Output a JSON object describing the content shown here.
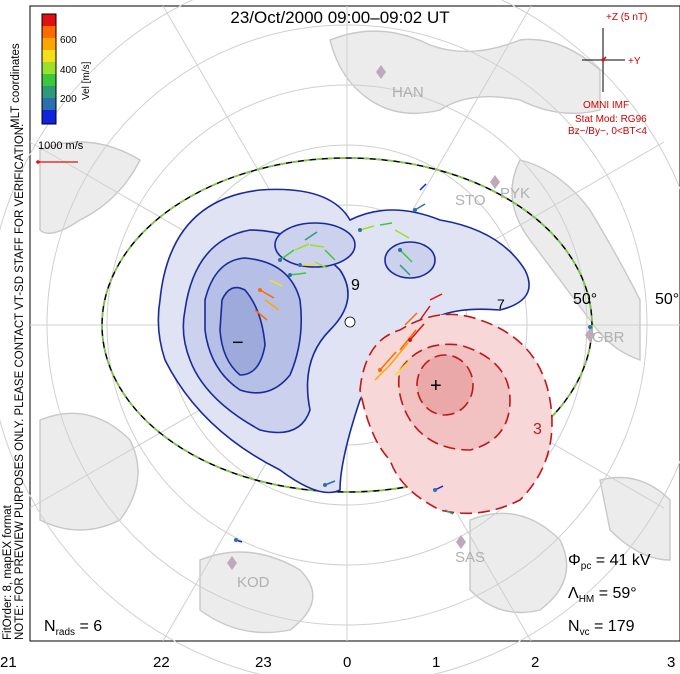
{
  "title": "23/Oct/2000 09:00–09:02 UT",
  "coordinate_system": "MLT coordinates",
  "colorbar": {
    "label": "Vel [m/s]",
    "ticks": [
      "600",
      "400",
      "200"
    ],
    "colors": [
      "#e01010",
      "#ff6a00",
      "#ffa500",
      "#f2e11a",
      "#9be02a",
      "#3cc83c",
      "#2e9a7a",
      "#2a6fb0",
      "#1024e0"
    ]
  },
  "velocity_reference": "1000 m/s",
  "imf": {
    "clock_label_z": "+Z (5 nT)",
    "clock_label_y": "+Y",
    "source": "OMNI IMF",
    "stat_model": "Stat Mod: RG96",
    "condition": "Bz−/By−, 0<BT<4"
  },
  "notice": "NOTE: FOR PREVIEW PURPOSES ONLY. PLEASE CONTACT VT-SD STAFF FOR VERIFICATION.",
  "fit_info": "FitOrder: 8, mapEX format",
  "stations": [
    "HAN",
    "PYK",
    "STO",
    "GBR",
    "SAS",
    "KOD"
  ],
  "latitude_labels": [
    "50°",
    "50°"
  ],
  "mlt_ticks": [
    "21",
    "22",
    "23",
    "0",
    "1",
    "2",
    "3"
  ],
  "contour_labels": [
    "−",
    "+",
    "9",
    "3",
    "7"
  ],
  "stats": {
    "phi_pc_label": "Φ",
    "phi_pc_sub": "pc",
    "phi_pc_value": "= 41 kV",
    "lambda_hm_label": "Λ",
    "lambda_hm_sub": "HM",
    "lambda_hm_value": "= 59°",
    "n_vc_label": "N",
    "n_vc_sub": "vc",
    "n_vc_value": "= 179",
    "n_rads_label": "N",
    "n_rads_sub": "rads",
    "n_rads_value": "= 6"
  },
  "colors": {
    "negative_cell": "#1a2a9a",
    "positive_cell": "#c01818",
    "boundary_green": "#7ac943",
    "coastline": "#c8c8c8",
    "grid": "#d0d0d0"
  }
}
